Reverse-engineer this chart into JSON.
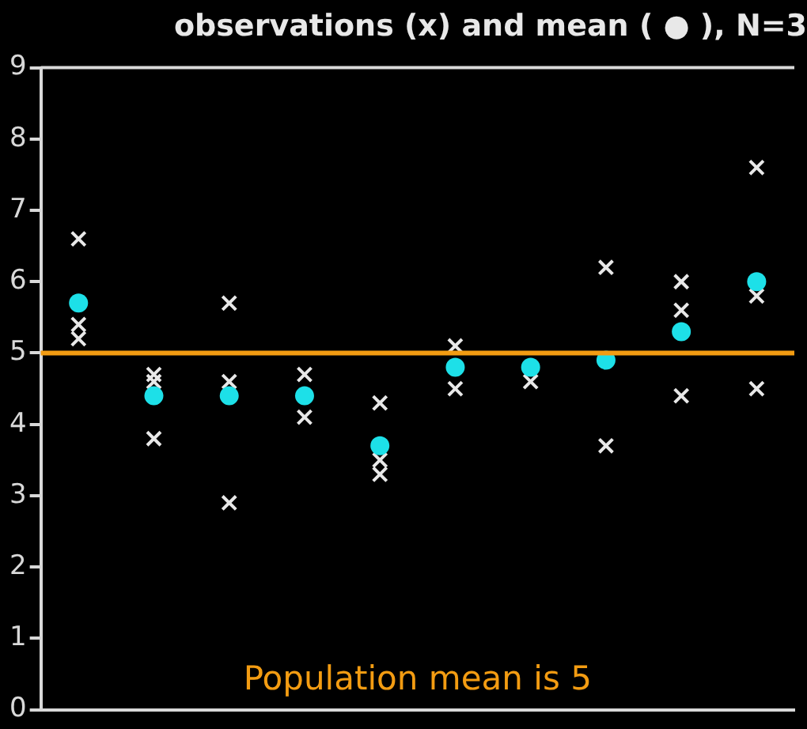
{
  "chart_data": {
    "type": "scatter",
    "title": "observations (x) and mean ( ● ), N=3",
    "categories": [
      null,
      null,
      null,
      null,
      null,
      null,
      null,
      null,
      null,
      null
    ],
    "series": [
      {
        "color": "#e8e8e8",
        "marker": "cross",
        "values": [
          6.6,
          4.7,
          5.7,
          4.7,
          4.3,
          5.1,
          4.6,
          6.2,
          6.0,
          7.6
        ]
      },
      {
        "color": "#e8e8e8",
        "marker": "cross",
        "values": [
          5.4,
          4.6,
          4.6,
          null,
          3.5,
          null,
          null,
          null,
          5.6,
          5.8
        ]
      },
      {
        "color": "#e8e8e8",
        "marker": "cross",
        "values": [
          5.2,
          3.8,
          2.9,
          4.1,
          3.3,
          4.5,
          null,
          3.7,
          4.4,
          4.5
        ]
      },
      {
        "color": "#1de0e8",
        "marker": "circle",
        "values": [
          5.7,
          4.4,
          4.4,
          4.4,
          3.7,
          4.8,
          4.8,
          4.9,
          5.3,
          6.0
        ]
      }
    ],
    "ylim": [
      0,
      9
    ],
    "yticks": [
      0,
      1,
      2,
      3,
      4,
      5,
      6,
      7,
      8,
      9
    ],
    "tick_labels": "y",
    "grid": false,
    "legend": false,
    "ref_lines": [
      {
        "axis": "y",
        "value": 5,
        "color": "#f39c12"
      }
    ],
    "annotations": [
      "Population mean is 5"
    ]
  }
}
